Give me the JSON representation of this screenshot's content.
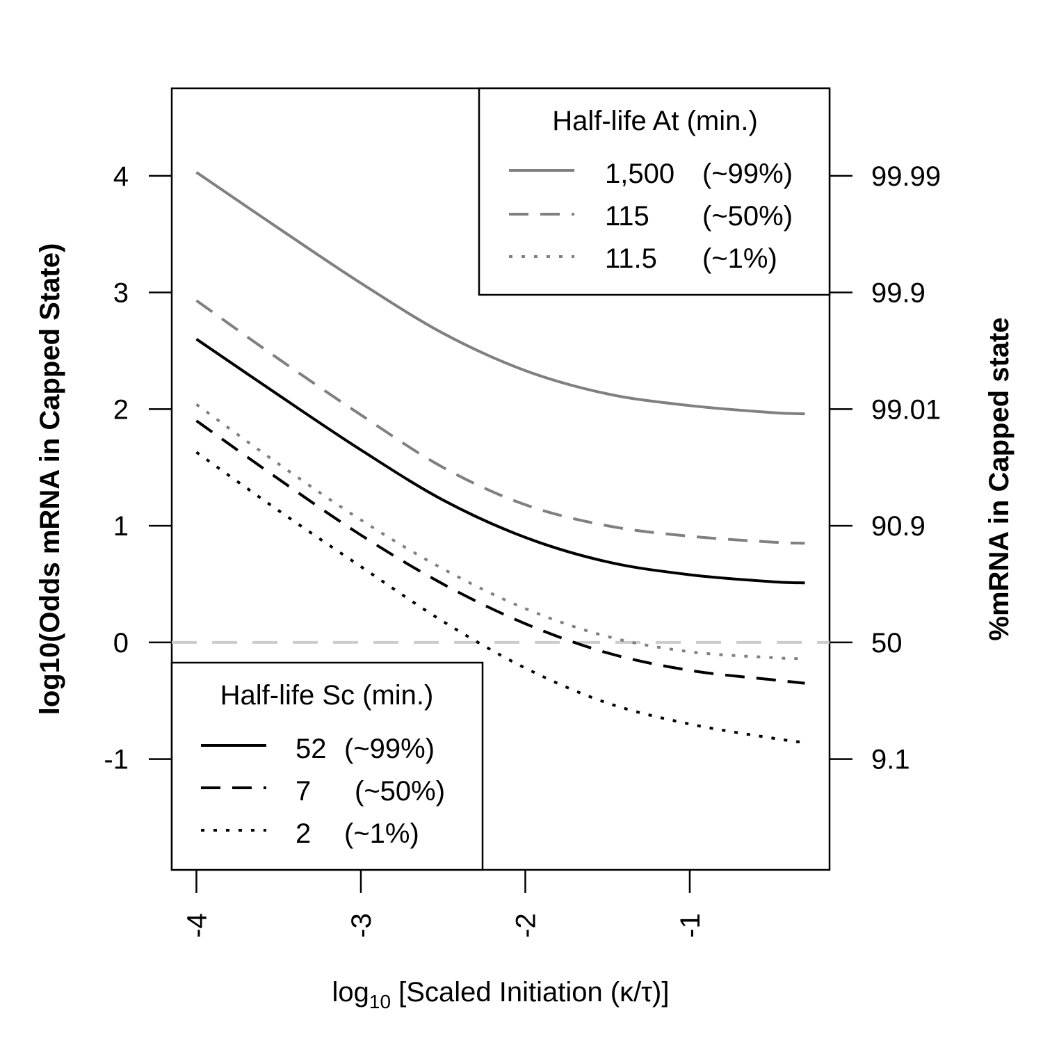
{
  "chart_data": {
    "type": "line",
    "xlabel_prefix": "log",
    "xlabel_subscript": "10",
    "xlabel_rest": " [Scaled Initiation (κ/τ)]",
    "ylabel": "log10(Odds mRNA in Capped State)",
    "y2label": "%mRNA in Capped state",
    "xlim": [
      -4.15,
      -0.15
    ],
    "ylim": [
      -1.95,
      4.75
    ],
    "x_ticks": [
      {
        "value": -4,
        "label": "-4"
      },
      {
        "value": -3,
        "label": "-3"
      },
      {
        "value": -2,
        "label": "-2"
      },
      {
        "value": -1,
        "label": "-1"
      }
    ],
    "y_ticks": [
      {
        "value": -1,
        "label": "-1"
      },
      {
        "value": 0,
        "label": "0"
      },
      {
        "value": 1,
        "label": "1"
      },
      {
        "value": 2,
        "label": "2"
      },
      {
        "value": 3,
        "label": "3"
      },
      {
        "value": 4,
        "label": "4"
      }
    ],
    "y2_ticks": [
      {
        "value": -1,
        "label": "9.1"
      },
      {
        "value": 0,
        "label": "50"
      },
      {
        "value": 1,
        "label": "90.9"
      },
      {
        "value": 2,
        "label": "99.01"
      },
      {
        "value": 3,
        "label": "99.9"
      },
      {
        "value": 4,
        "label": "99.99"
      }
    ],
    "reference_line": {
      "y": 0,
      "color": "#cccccc",
      "style": "dashed"
    },
    "x": [
      -4.0,
      -3.5,
      -3.0,
      -2.5,
      -2.0,
      -1.5,
      -1.0,
      -0.5,
      -0.3
    ],
    "series": [
      {
        "group": "at",
        "color": "#808080",
        "dash": "solid",
        "values": [
          4.03,
          3.55,
          3.08,
          2.65,
          2.33,
          2.13,
          2.03,
          1.97,
          1.96
        ]
      },
      {
        "group": "at",
        "color": "#808080",
        "dash": "dashed",
        "values": [
          2.93,
          2.43,
          1.95,
          1.5,
          1.18,
          1.0,
          0.91,
          0.86,
          0.85
        ]
      },
      {
        "group": "at",
        "color": "#808080",
        "dash": "dotted",
        "values": [
          2.04,
          1.53,
          1.05,
          0.63,
          0.29,
          0.05,
          -0.08,
          -0.13,
          -0.14
        ]
      },
      {
        "group": "sc",
        "color": "#000000",
        "dash": "solid",
        "values": [
          2.6,
          2.12,
          1.65,
          1.22,
          0.9,
          0.69,
          0.58,
          0.52,
          0.51
        ]
      },
      {
        "group": "sc",
        "color": "#000000",
        "dash": "dashed",
        "values": [
          1.9,
          1.4,
          0.92,
          0.5,
          0.16,
          -0.09,
          -0.24,
          -0.32,
          -0.35
        ]
      },
      {
        "group": "sc",
        "color": "#000000",
        "dash": "dotted",
        "values": [
          1.63,
          1.13,
          0.65,
          0.18,
          -0.22,
          -0.52,
          -0.7,
          -0.82,
          -0.86
        ]
      }
    ],
    "legends": [
      {
        "position": "top-right",
        "title": "Half-life At (min.)",
        "entries": [
          {
            "value": "1,500",
            "pct": "(~99%)",
            "color": "#808080",
            "dash": "solid"
          },
          {
            "value": "115",
            "pct": "(~50%)",
            "color": "#808080",
            "dash": "dashed"
          },
          {
            "value": "11.5",
            "pct": "(~1%)",
            "color": "#808080",
            "dash": "dotted"
          }
        ]
      },
      {
        "position": "bottom-left",
        "title": "Half-life Sc (min.)",
        "entries": [
          {
            "value": "52",
            "pct": "(~99%)",
            "color": "#000000",
            "dash": "solid"
          },
          {
            "value": "7",
            "pct": "(~50%)",
            "color": "#000000",
            "dash": "dashed"
          },
          {
            "value": "2",
            "pct": "(~1%)",
            "color": "#000000",
            "dash": "dotted"
          }
        ]
      }
    ]
  }
}
